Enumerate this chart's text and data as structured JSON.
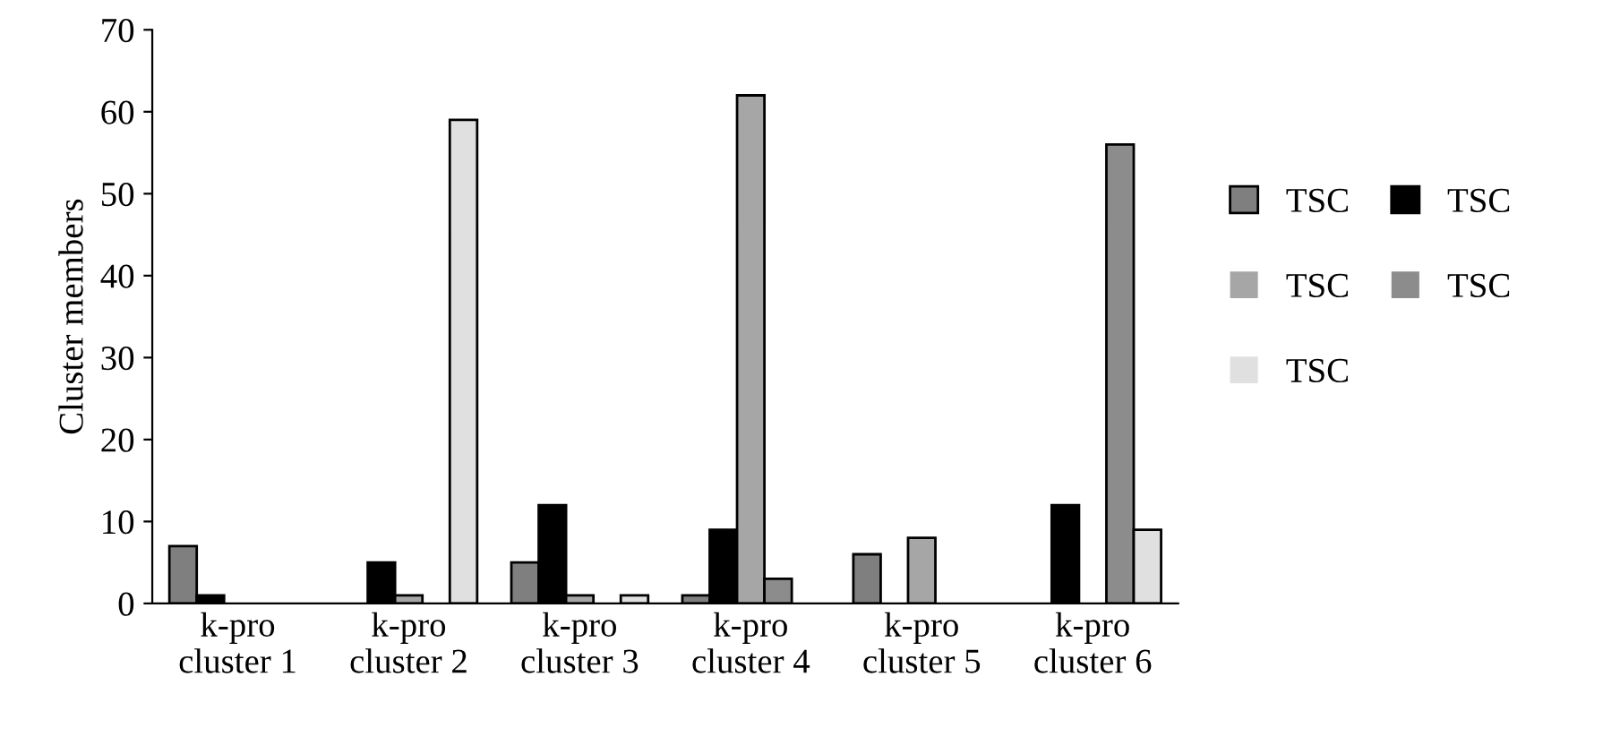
{
  "chart_data": {
    "type": "bar",
    "ylabel": "Cluster members",
    "categories": [
      "k-pro\ncluster 1",
      "k-pro\ncluster 2",
      "k-pro\ncluster 3",
      "k-pro\ncluster 4",
      "k-pro\ncluster 5",
      "k-pro\ncluster 6"
    ],
    "series": [
      {
        "name": "TSC",
        "color": "#7f7f7f",
        "values": [
          7,
          0,
          5,
          1,
          6,
          0
        ]
      },
      {
        "name": "TSC",
        "color": "#000000",
        "values": [
          1,
          5,
          12,
          9,
          0,
          12
        ]
      },
      {
        "name": "TSC",
        "color": "#a6a6a6",
        "values": [
          0,
          1,
          1,
          62,
          8,
          0
        ]
      },
      {
        "name": "TSC",
        "color": "#8c8c8c",
        "values": [
          0,
          0,
          0,
          3,
          0,
          56
        ]
      },
      {
        "name": "TSC",
        "color": "#e0e0e0",
        "values": [
          0,
          59,
          1,
          0,
          0,
          9
        ]
      }
    ],
    "ylim": [
      0,
      70
    ],
    "yticks": [
      0,
      10,
      20,
      30,
      40,
      50,
      60,
      70
    ],
    "grid": false,
    "legend": "right"
  }
}
